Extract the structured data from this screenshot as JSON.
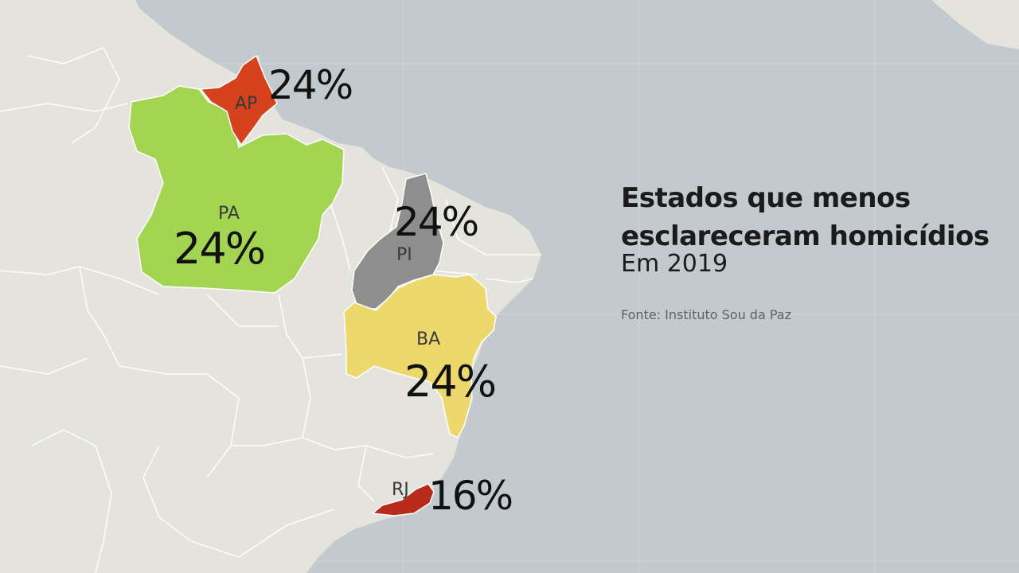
{
  "title_line1": "Estados que menos",
  "title_line2": "esclareceram homicídios",
  "subtitle": "Em 2019",
  "source": "Fonte:  Instituto Sou da Paz",
  "states": [
    {
      "abbr": "AP",
      "value": "24%",
      "color": "#d6421e"
    },
    {
      "abbr": "PA",
      "value": "24%",
      "color": "#a3d452"
    },
    {
      "abbr": "PI",
      "value": "24%",
      "color": "#8e8e8e"
    },
    {
      "abbr": "BA",
      "value": "24%",
      "color": "#ecd86d"
    },
    {
      "abbr": "RJ",
      "value": "16%",
      "color": "#b82a1a"
    }
  ],
  "colors": {
    "ocean": "#c2cacd",
    "land": "#e4e3dc",
    "borders": "#ffffff"
  }
}
